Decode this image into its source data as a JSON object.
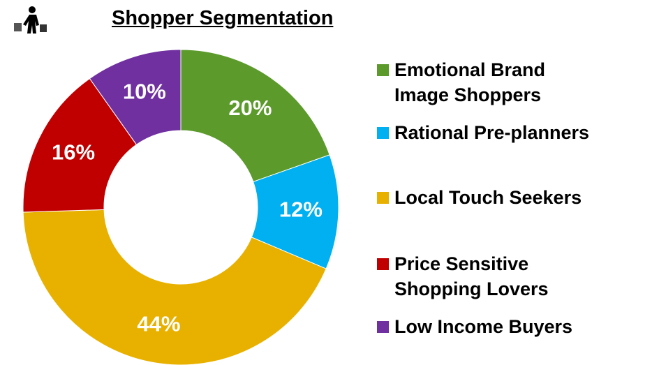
{
  "chart_data": {
    "type": "donut",
    "title": "Shopper Segmentation",
    "categories": [
      "Emotional Brand Image Shoppers",
      "Rational Pre-planners",
      "Local Touch Seekers",
      "Price Sensitive Shopping Lovers",
      "Low Income Buyers"
    ],
    "values": [
      20,
      12,
      44,
      16,
      10
    ],
    "value_labels": [
      "20%",
      "12%",
      "44%",
      "16%",
      "10%"
    ],
    "colors": [
      "#5b9a2b",
      "#00b0f0",
      "#e8b100",
      "#c00000",
      "#7030a0"
    ],
    "legend": "right"
  }
}
